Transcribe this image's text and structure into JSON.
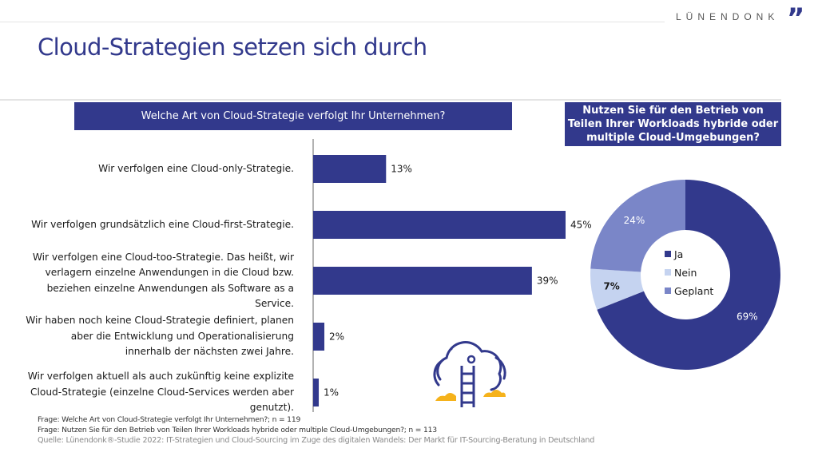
{
  "header": {
    "brand": "LÜNENDONK",
    "brand_mark": "”",
    "title": "Cloud-Strategien setzen sich durch"
  },
  "colors": {
    "primary": "#32398C",
    "nein": "#C5D3F0",
    "geplant": "#7A86C8",
    "icon_accent": "#F5B21B"
  },
  "chart_data": [
    {
      "type": "bar",
      "orientation": "horizontal",
      "title": "Welche Art von Cloud-Strategie verfolgt Ihr Unternehmen?",
      "categories": [
        "Wir verfolgen eine Cloud-only-Strategie.",
        "Wir verfolgen grundsätzlich eine Cloud-first-Strategie.",
        "Wir verfolgen eine Cloud-too-Strategie. Das heißt, wir verlagern einzelne Anwendungen in die Cloud bzw. beziehen einzelne Anwendungen als Software as a Service.",
        "Wir haben noch keine Cloud-Strategie definiert, planen aber die Entwicklung und Operationalisierung innerhalb der nächsten zwei Jahre.",
        "Wir verfolgen aktuell als auch zukünftig keine explizite Cloud-Strategie (einzelne Cloud-Services werden aber genutzt)."
      ],
      "category_lines": [
        [
          "Wir verfolgen eine Cloud-only-Strategie."
        ],
        [
          "Wir verfolgen grundsätzlich eine Cloud-first-Strategie."
        ],
        [
          "Wir verfolgen eine Cloud-too-Strategie. Das heißt, wir",
          "verlagern einzelne Anwendungen in die Cloud bzw.",
          "beziehen einzelne Anwendungen als Software as a",
          "Service."
        ],
        [
          "Wir haben noch keine Cloud-Strategie definiert, planen",
          "aber die Entwicklung und Operationalisierung",
          "innerhalb der nächsten zwei Jahre."
        ],
        [
          "Wir verfolgen aktuell als auch zukünftig keine explizite",
          "Cloud-Strategie (einzelne Cloud-Services werden aber",
          "genutzt)."
        ]
      ],
      "values": [
        13,
        45,
        39,
        2,
        1
      ],
      "labels": [
        "13%",
        "45%",
        "39%",
        "2%",
        "1%"
      ],
      "unit": "%",
      "xlim": [
        0,
        45
      ],
      "grid": false
    },
    {
      "type": "pie",
      "variant": "donut",
      "title": "Nutzen Sie für den Betrieb von Teilen Ihrer Workloads hybride oder multiple Cloud-Umgebungen?",
      "slices": [
        {
          "name": "Ja",
          "value": 69,
          "label": "69%",
          "color": "#32398C"
        },
        {
          "name": "Nein",
          "value": 7,
          "label": "7%",
          "color": "#C5D3F0"
        },
        {
          "name": "Geplant",
          "value": 24,
          "label": "24%",
          "color": "#7A86C8"
        }
      ],
      "legend": [
        "Ja",
        "Nein",
        "Geplant"
      ],
      "legend_position": "center"
    }
  ],
  "illustration": {
    "icon": "cloud-ladder-icon"
  },
  "footer": {
    "q1": "Frage: Welche Art von Cloud-Strategie verfolgt Ihr Unternehmen?; n = 119",
    "q2": "Frage: Nutzen Sie für den Betrieb von Teilen Ihrer Workloads hybride oder multiple Cloud-Umgebungen?; n = 113",
    "source": "Quelle: Lünendonk®-Studie 2022: IT-Strategien und Cloud-Sourcing im Zuge des digitalen Wandels: Der Markt für IT-Sourcing-Beratung in Deutschland"
  }
}
